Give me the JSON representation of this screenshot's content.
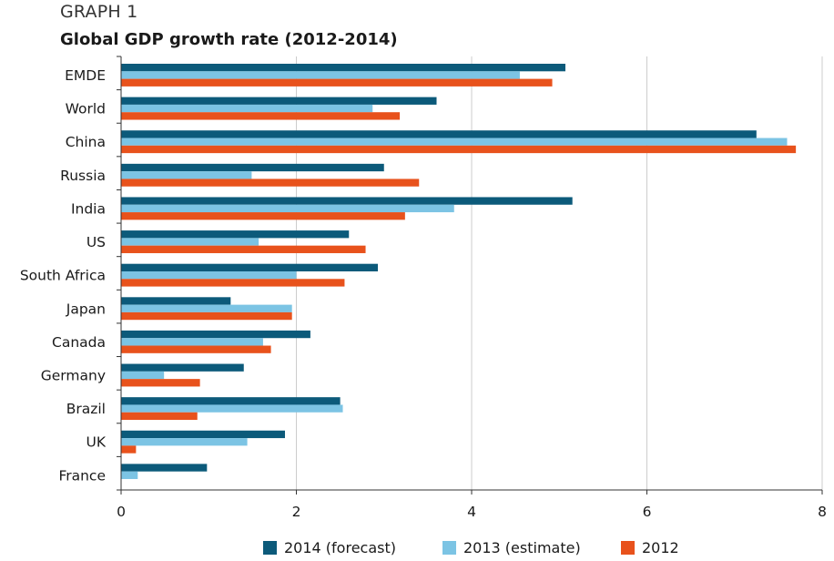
{
  "header": {
    "graph_label": "GRAPH 1",
    "title": "Global GDP growth rate (2012-2014)"
  },
  "colors": {
    "series_2014": "#0c5a7a",
    "series_2013": "#7cc4e4",
    "series_2012": "#e8521c",
    "grid": "#cccccc",
    "axis": "#333333"
  },
  "chart_data": {
    "type": "bar",
    "orientation": "horizontal",
    "title": "Global GDP growth rate (2012-2014)",
    "xlabel": "",
    "ylabel": "",
    "xlim": [
      0,
      8
    ],
    "x_ticks": [
      "0",
      "2",
      "4",
      "6",
      "8"
    ],
    "grid": "vertical",
    "legend_position": "bottom",
    "categories": [
      "EMDE",
      "World",
      "China",
      "Russia",
      "India",
      "US",
      "South Africa",
      "Japan",
      "Canada",
      "Germany",
      "Brazil",
      "UK",
      "France"
    ],
    "series": [
      {
        "name": "2014 (forecast)",
        "color": "#0c5a7a",
        "values": [
          5.07,
          3.6,
          7.25,
          3.0,
          5.15,
          2.6,
          2.93,
          1.25,
          2.16,
          1.4,
          2.5,
          1.87,
          0.98
        ]
      },
      {
        "name": "2013 (estimate)",
        "color": "#7cc4e4",
        "values": [
          4.55,
          2.87,
          7.6,
          1.49,
          3.8,
          1.57,
          2.0,
          1.95,
          1.62,
          0.49,
          2.53,
          1.44,
          0.19
        ]
      },
      {
        "name": "2012",
        "color": "#e8521c",
        "values": [
          4.92,
          3.18,
          7.7,
          3.4,
          3.24,
          2.79,
          2.55,
          1.95,
          1.71,
          0.9,
          0.87,
          0.17,
          0.0
        ]
      }
    ]
  }
}
